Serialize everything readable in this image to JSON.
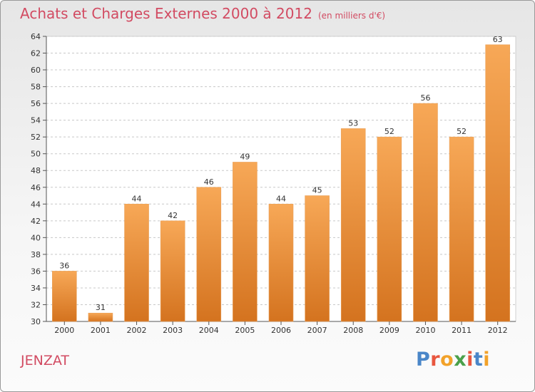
{
  "header": {
    "title": "Achats et Charges Externes 2000 à 2012",
    "unit": "(en milliers d'€)"
  },
  "commune": "JENZAT",
  "logo": {
    "letters": [
      "P",
      "r",
      "o",
      "x",
      "i",
      "t",
      "i"
    ]
  },
  "colors": {
    "bar_light": "#f7a857",
    "bar_dark": "#d4731f",
    "title": "#d24b62",
    "grid": "#c8c8c8"
  },
  "chart_data": {
    "type": "bar",
    "categories": [
      "2000",
      "2001",
      "2002",
      "2003",
      "2004",
      "2005",
      "2006",
      "2007",
      "2008",
      "2009",
      "2010",
      "2011",
      "2012"
    ],
    "values": [
      36,
      31,
      44,
      42,
      46,
      49,
      44,
      45,
      53,
      52,
      56,
      52,
      63
    ],
    "title": "Achats et Charges Externes 2000 à 2012",
    "ylim": [
      30,
      64
    ],
    "yticks": [
      30,
      32,
      34,
      36,
      38,
      40,
      42,
      44,
      46,
      48,
      50,
      52,
      54,
      56,
      58,
      60,
      62,
      64
    ],
    "grid": true
  }
}
